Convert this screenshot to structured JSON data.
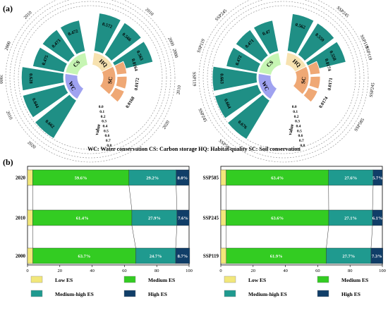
{
  "panel_labels": {
    "a": "(a)",
    "b": "(b)"
  },
  "abbreviations": "WC: Water conservation   CS: Carbon storage   HQ: Habitat quality   SC: Soil conservation",
  "colors": {
    "low": "#f2e77a",
    "medium": "#33cc22",
    "medium_high": "#1f9a8f",
    "high": "#103e68",
    "bar_teal": "#1f8f85",
    "cs_ring": "#c6f5b3",
    "hq_ring": "#f7e2b0",
    "sc_ring": "#efa875",
    "wc_ring": "#9fa2f0"
  },
  "chart_data": [
    {
      "type": "radial_bar",
      "panel": "(a) left",
      "value_axis_label": "value",
      "value_ticks": [
        "0.0",
        "0.1",
        "0.2",
        "0.3",
        "0.4",
        "0.5",
        "0.6",
        "0.7",
        "0.8"
      ],
      "group_labels": [
        "CS",
        "HQ",
        "SC",
        "WC"
      ],
      "groups": [
        {
          "name": "CS",
          "bars": [
            {
              "label": "2000",
              "value": 0.475
            },
            {
              "label": "2010",
              "value": 0.473
            },
            {
              "label": "2020",
              "value": 0.472
            }
          ]
        },
        {
          "name": "HQ",
          "bars": [
            {
              "label": "2000",
              "value": 0.572
            },
            {
              "label": "2010",
              "value": 0.566
            },
            {
              "label": "2020",
              "value": 0.563
            }
          ]
        },
        {
          "name": "SC",
          "bars": [
            {
              "label": "2000",
              "value": 0.0164
            },
            {
              "label": "2010",
              "value": 0.0172
            },
            {
              "label": "2020",
              "value": 0.0168
            }
          ]
        },
        {
          "name": "WC",
          "bars": [
            {
              "label": "2020",
              "value": 0.662
            },
            {
              "label": "2010",
              "value": 0.644
            },
            {
              "label": "2000",
              "value": 0.628
            }
          ]
        }
      ],
      "outer_labels": [
        "2000",
        "2010",
        "2020",
        "2020",
        "2010",
        "2000",
        "2000",
        "2010",
        "2020",
        "2020",
        "2010",
        "2000"
      ]
    },
    {
      "type": "radial_bar",
      "panel": "(a) right",
      "value_axis_label": "value",
      "value_ticks": [
        "0.0",
        "0.1",
        "0.2",
        "0.3",
        "0.4",
        "0.5",
        "0.6",
        "0.7",
        "0.8"
      ],
      "group_labels": [
        "CS",
        "HQ",
        "SC",
        "WC"
      ],
      "groups": [
        {
          "name": "CS",
          "bars": [
            {
              "label": "SSP119",
              "value": 0.472
            },
            {
              "label": "SSP245",
              "value": 0.471
            },
            {
              "label": "SSP585",
              "value": 0.47
            }
          ]
        },
        {
          "name": "HQ",
          "bars": [
            {
              "label": "SSP119",
              "value": 0.562
            },
            {
              "label": "SSP245",
              "value": 0.559
            },
            {
              "label": "SSP585",
              "value": 0.558
            }
          ]
        },
        {
          "name": "SC",
          "bars": [
            {
              "label": "SSP119",
              "value": 0.0174
            },
            {
              "label": "SSP245",
              "value": 0.0171
            },
            {
              "label": "SSP585",
              "value": 0.0174
            }
          ]
        },
        {
          "name": "WC",
          "bars": [
            {
              "label": "SSP585",
              "value": 0.676
            },
            {
              "label": "SSP245",
              "value": 0.664
            },
            {
              "label": "SSP119",
              "value": 0.663
            }
          ]
        }
      ],
      "outer_labels": [
        "SSP119",
        "SSP245",
        "SSP585",
        "SSP585",
        "SSP245",
        "SSP119",
        "SSP119",
        "SSP245",
        "SSP585",
        "SSP585",
        "SSP245",
        "SSP119"
      ]
    },
    {
      "type": "stacked_bar_horizontal",
      "panel": "(b) left",
      "categories": [
        "2020",
        "2010",
        "2000"
      ],
      "xlim": [
        0,
        100
      ],
      "x_ticks": [
        "0",
        "20",
        "40",
        "60",
        "80",
        "100"
      ],
      "series": [
        {
          "name": "Low ES",
          "values": [
            3.2,
            3.2,
            3.3
          ]
        },
        {
          "name": "Medium ES",
          "values": [
            59.6,
            61.4,
            63.7
          ]
        },
        {
          "name": "Medium-high ES",
          "values": [
            29.2,
            27.9,
            24.7
          ]
        },
        {
          "name": "High ES",
          "values": [
            8.0,
            7.6,
            8.7
          ]
        }
      ],
      "labels": [
        [
          "59.6%",
          "29.2%",
          "8.0%"
        ],
        [
          "61.4%",
          "27.9%",
          "7.6%"
        ],
        [
          "63.7%",
          "24.7%",
          "8.7%"
        ]
      ]
    },
    {
      "type": "stacked_bar_horizontal",
      "panel": "(b) right",
      "categories": [
        "SSP585",
        "SSP245",
        "SSP119"
      ],
      "xlim": [
        0,
        100
      ],
      "x_ticks": [
        "0",
        "20",
        "40",
        "60",
        "80",
        "100"
      ],
      "series": [
        {
          "name": "Low ES",
          "values": [
            3.3,
            3.2,
            3.4
          ]
        },
        {
          "name": "Medium ES",
          "values": [
            63.4,
            63.6,
            61.9
          ]
        },
        {
          "name": "Medium-high ES",
          "values": [
            27.6,
            27.1,
            27.7
          ]
        },
        {
          "name": "High ES",
          "values": [
            5.7,
            6.1,
            7.3
          ]
        }
      ],
      "labels": [
        [
          "63.4%",
          "27.6%",
          "5.7%"
        ],
        [
          "63.6%",
          "27.1%",
          "6.1%"
        ],
        [
          "61.9%",
          "27.7%",
          "7.3%"
        ]
      ]
    }
  ],
  "legend": [
    "Low ES",
    "Medium ES",
    "Medium-high ES",
    "High ES"
  ]
}
